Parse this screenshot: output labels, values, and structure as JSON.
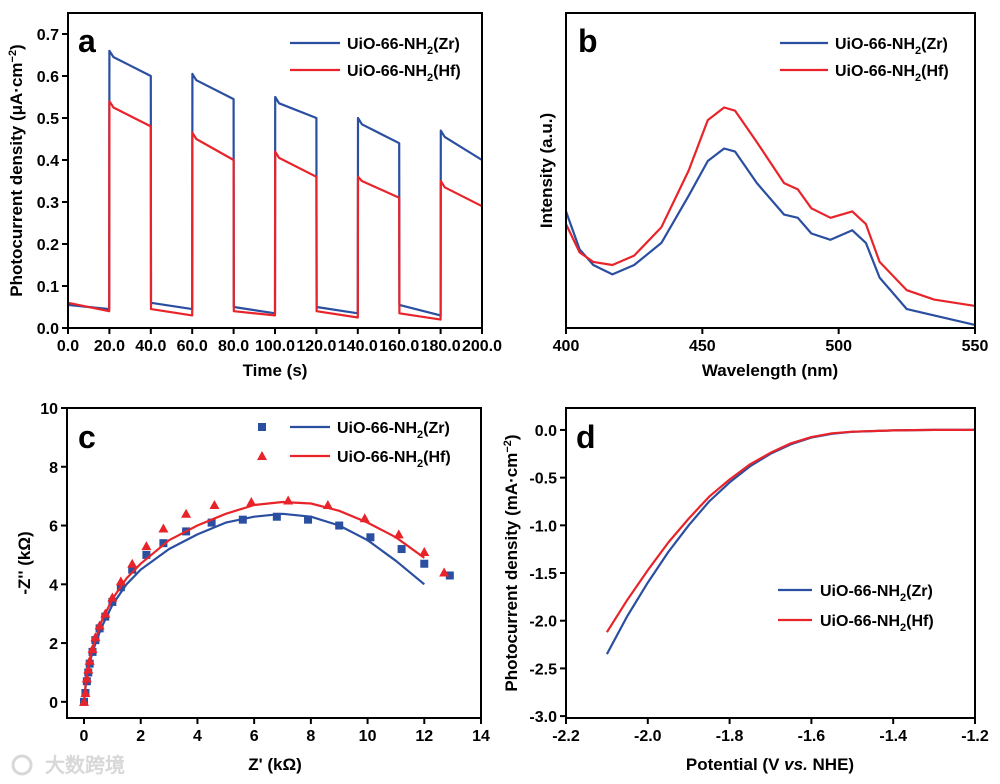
{
  "colors": {
    "zr": "#2a4ea0",
    "hf": "#e8242a"
  },
  "watermark": "大数跨境",
  "chart_data": [
    {
      "panel": "a",
      "type": "line",
      "xlabel": "Time (s)",
      "ylabel": {
        "main": "Photocurrent density (μA·cm",
        "sup": "−2",
        "end": ")"
      },
      "xlim": [
        0,
        200
      ],
      "ylim": [
        0,
        0.75
      ],
      "xticks": [
        0,
        20,
        40,
        60,
        80,
        100,
        120,
        140,
        160,
        180,
        200
      ],
      "yticks": [
        0.0,
        0.1,
        0.2,
        0.3,
        0.4,
        0.5,
        0.6,
        0.7
      ],
      "legend_position": "top-right",
      "series": [
        {
          "name": {
            "pre": "UiO-66-NH",
            "sub": "2",
            "post": "(Zr)"
          },
          "color_key": "zr",
          "x": [
            0,
            19.9,
            20,
            22,
            40,
            40.1,
            60,
            60.1,
            62,
            80,
            80.1,
            100,
            100.1,
            102,
            120,
            120.1,
            140,
            140.1,
            142,
            160,
            160.1,
            180,
            180.1,
            182,
            200
          ],
          "y": [
            0.055,
            0.045,
            0.66,
            0.645,
            0.6,
            0.06,
            0.045,
            0.605,
            0.59,
            0.545,
            0.05,
            0.035,
            0.55,
            0.535,
            0.5,
            0.05,
            0.035,
            0.5,
            0.485,
            0.44,
            0.055,
            0.03,
            0.47,
            0.455,
            0.4
          ]
        },
        {
          "name": {
            "pre": "UiO-66-NH",
            "sub": "2",
            "post": "(Hf)"
          },
          "color_key": "hf",
          "x": [
            0,
            19.9,
            20,
            22,
            40,
            40.1,
            60,
            60.1,
            62,
            80,
            80.1,
            100,
            100.1,
            102,
            120,
            120.1,
            140,
            140.1,
            142,
            160,
            160.1,
            180,
            180.1,
            182,
            200
          ],
          "y": [
            0.06,
            0.04,
            0.54,
            0.525,
            0.48,
            0.045,
            0.03,
            0.465,
            0.45,
            0.4,
            0.04,
            0.03,
            0.42,
            0.405,
            0.36,
            0.04,
            0.025,
            0.36,
            0.35,
            0.31,
            0.035,
            0.02,
            0.35,
            0.335,
            0.29
          ]
        }
      ]
    },
    {
      "panel": "b",
      "type": "line",
      "xlabel": "Wavelength (nm)",
      "ylabel": {
        "main": "Intensity (a.u.)",
        "sup": "",
        "end": ""
      },
      "xlim": [
        400,
        550
      ],
      "ylim": [
        0,
        1
      ],
      "xticks": [
        400,
        450,
        500,
        550
      ],
      "yticks": [],
      "legend_position": "top-right",
      "series": [
        {
          "name": {
            "pre": "UiO-66-NH",
            "sub": "2",
            "post": "(Zr)"
          },
          "color_key": "zr",
          "x": [
            400,
            405,
            410,
            417,
            425,
            435,
            445,
            452,
            458,
            462,
            470,
            480,
            485,
            490,
            497,
            505,
            510,
            515,
            525,
            535,
            550
          ],
          "y": [
            0.37,
            0.25,
            0.2,
            0.17,
            0.2,
            0.27,
            0.42,
            0.53,
            0.57,
            0.56,
            0.46,
            0.36,
            0.35,
            0.3,
            0.28,
            0.31,
            0.27,
            0.16,
            0.06,
            0.04,
            0.01
          ]
        },
        {
          "name": {
            "pre": "UiO-66-NH",
            "sub": "2",
            "post": "(Hf)"
          },
          "color_key": "hf",
          "x": [
            400,
            405,
            410,
            417,
            425,
            435,
            445,
            452,
            458,
            462,
            470,
            480,
            485,
            490,
            497,
            505,
            510,
            515,
            525,
            535,
            550
          ],
          "y": [
            0.33,
            0.24,
            0.21,
            0.2,
            0.23,
            0.32,
            0.5,
            0.66,
            0.7,
            0.69,
            0.59,
            0.46,
            0.44,
            0.38,
            0.35,
            0.37,
            0.33,
            0.21,
            0.12,
            0.09,
            0.07
          ]
        }
      ]
    },
    {
      "panel": "c",
      "type": "scatter",
      "xlabel": "Z' (kΩ)",
      "ylabel": {
        "main": "-Z'' (kΩ)",
        "sup": "",
        "end": ""
      },
      "xlim": [
        -0.6,
        14
      ],
      "ylim": [
        -0.55,
        10
      ],
      "xticks": [
        0,
        2,
        4,
        6,
        8,
        10,
        12,
        14
      ],
      "yticks": [
        0,
        2,
        4,
        6,
        8,
        10
      ],
      "legend_position": "top-right",
      "series": [
        {
          "name": {
            "pre": "UiO-66-NH",
            "sub": "2",
            "post": "(Zr)"
          },
          "color_key": "zr",
          "marker": "square",
          "x": [
            0,
            0.05,
            0.1,
            0.15,
            0.2,
            0.3,
            0.4,
            0.55,
            0.75,
            1.0,
            1.3,
            1.7,
            2.2,
            2.8,
            3.6,
            4.5,
            5.6,
            6.8,
            7.9,
            9.0,
            10.1,
            11.2,
            12.0,
            12.9
          ],
          "y": [
            0,
            0.3,
            0.7,
            1.0,
            1.3,
            1.7,
            2.1,
            2.5,
            2.9,
            3.4,
            3.9,
            4.5,
            5.0,
            5.4,
            5.8,
            6.1,
            6.2,
            6.3,
            6.2,
            6.0,
            5.6,
            5.2,
            4.7,
            4.3
          ],
          "fit_x": [
            0,
            0.1,
            0.3,
            0.6,
            1,
            1.5,
            2,
            3,
            4,
            5,
            6,
            7,
            8,
            9,
            10,
            11,
            12
          ],
          "fit_y": [
            0,
            0.9,
            1.7,
            2.5,
            3.3,
            4.0,
            4.5,
            5.2,
            5.7,
            6.1,
            6.3,
            6.4,
            6.3,
            6.0,
            5.5,
            4.8,
            4.0
          ]
        },
        {
          "name": {
            "pre": "UiO-66-NH",
            "sub": "2",
            "post": "(Hf)"
          },
          "color_key": "hf",
          "marker": "triangle",
          "x": [
            0,
            0.05,
            0.1,
            0.15,
            0.2,
            0.3,
            0.4,
            0.55,
            0.75,
            1.0,
            1.3,
            1.7,
            2.2,
            2.8,
            3.6,
            4.6,
            5.9,
            7.2,
            8.6,
            9.9,
            11.1,
            12.0,
            12.7
          ],
          "y": [
            0,
            0.3,
            0.8,
            1.1,
            1.4,
            1.8,
            2.2,
            2.6,
            3.0,
            3.55,
            4.1,
            4.7,
            5.3,
            5.9,
            6.4,
            6.7,
            6.8,
            6.85,
            6.7,
            6.25,
            5.7,
            5.1,
            4.4
          ],
          "fit_x": [
            0,
            0.1,
            0.3,
            0.6,
            1,
            1.5,
            2,
            3,
            4,
            5,
            6,
            7,
            8,
            9,
            10,
            11,
            12
          ],
          "fit_y": [
            0,
            1.0,
            1.8,
            2.7,
            3.5,
            4.2,
            4.7,
            5.5,
            6.0,
            6.4,
            6.7,
            6.8,
            6.75,
            6.5,
            6.1,
            5.6,
            4.9
          ]
        }
      ]
    },
    {
      "panel": "d",
      "type": "line",
      "xlabel": {
        "pre": "Potential (V ",
        "ital": "vs.",
        "post": " NHE)"
      },
      "ylabel": {
        "main": "Photocurrent density (mA·cm",
        "sup": "−2",
        "end": ")"
      },
      "xlim": [
        -2.2,
        -1.2
      ],
      "ylim": [
        -3.02,
        0.23
      ],
      "xticks": [
        -2.2,
        -2.0,
        -1.8,
        -1.6,
        -1.4,
        -1.2
      ],
      "yticks": [
        -3.0,
        -2.5,
        -2.0,
        -1.5,
        -1.0,
        -0.5,
        0.0
      ],
      "legend_position": "bottom-right",
      "series": [
        {
          "name": {
            "pre": "UiO-66-NH",
            "sub": "2",
            "post": "(Zr)"
          },
          "color_key": "zr",
          "x": [
            -2.1,
            -2.05,
            -2.0,
            -1.95,
            -1.9,
            -1.85,
            -1.8,
            -1.75,
            -1.7,
            -1.65,
            -1.6,
            -1.55,
            -1.5,
            -1.4,
            -1.3,
            -1.2
          ],
          "y": [
            -2.35,
            -1.95,
            -1.6,
            -1.28,
            -1.0,
            -0.75,
            -0.55,
            -0.38,
            -0.25,
            -0.15,
            -0.08,
            -0.04,
            -0.02,
            -0.005,
            0,
            0
          ]
        },
        {
          "name": {
            "pre": "UiO-66-NH",
            "sub": "2",
            "post": "(Hf)"
          },
          "color_key": "hf",
          "x": [
            -2.1,
            -2.05,
            -2.0,
            -1.95,
            -1.9,
            -1.85,
            -1.8,
            -1.75,
            -1.7,
            -1.65,
            -1.6,
            -1.55,
            -1.5,
            -1.4,
            -1.3,
            -1.2
          ],
          "y": [
            -2.12,
            -1.78,
            -1.47,
            -1.18,
            -0.93,
            -0.7,
            -0.52,
            -0.36,
            -0.24,
            -0.14,
            -0.075,
            -0.035,
            -0.018,
            -0.005,
            0,
            0
          ]
        }
      ]
    }
  ]
}
